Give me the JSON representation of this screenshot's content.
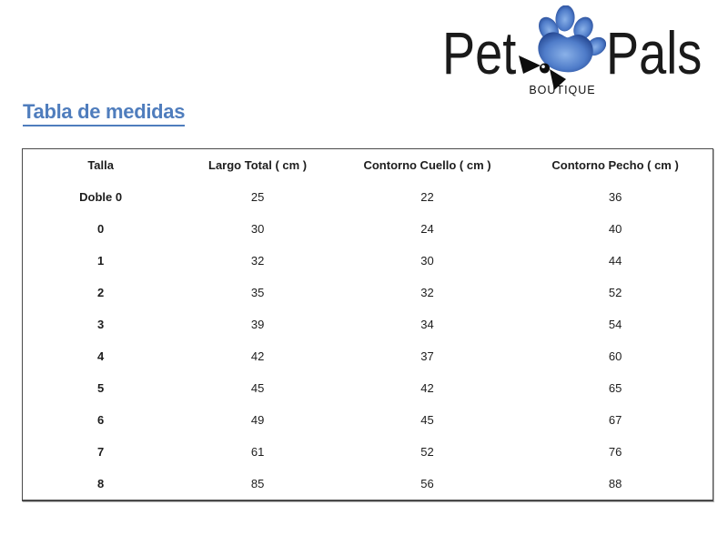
{
  "logo": {
    "word1": "Pet",
    "word2": "Pals",
    "subtitle": "BOUTIQUE",
    "paw_icon": "paw-with-bow-icon",
    "colors": {
      "paw_light": "#8ab1e8",
      "paw_mid": "#4f7cc9",
      "paw_dark": "#16357f",
      "bow": "#0d0d0d",
      "text": "#1a1a1a"
    }
  },
  "page": {
    "title": "Tabla de medidas",
    "title_color": "#4f7dbd",
    "background": "#ffffff"
  },
  "table": {
    "headers": [
      "Talla",
      "Largo Total ( cm )",
      "Contorno Cuello ( cm )",
      "Contorno Pecho ( cm )"
    ],
    "rows": [
      {
        "talla": "Doble 0",
        "largo_total_cm": 25,
        "contorno_cuello_cm": 22,
        "contorno_pecho_cm": 36
      },
      {
        "talla": "0",
        "largo_total_cm": 30,
        "contorno_cuello_cm": 24,
        "contorno_pecho_cm": 40
      },
      {
        "talla": "1",
        "largo_total_cm": 32,
        "contorno_cuello_cm": 30,
        "contorno_pecho_cm": 44
      },
      {
        "talla": "2",
        "largo_total_cm": 35,
        "contorno_cuello_cm": 32,
        "contorno_pecho_cm": 52
      },
      {
        "talla": "3",
        "largo_total_cm": 39,
        "contorno_cuello_cm": 34,
        "contorno_pecho_cm": 54
      },
      {
        "talla": "4",
        "largo_total_cm": 42,
        "contorno_cuello_cm": 37,
        "contorno_pecho_cm": 60
      },
      {
        "talla": "5",
        "largo_total_cm": 45,
        "contorno_cuello_cm": 42,
        "contorno_pecho_cm": 65
      },
      {
        "talla": "6",
        "largo_total_cm": 49,
        "contorno_cuello_cm": 45,
        "contorno_pecho_cm": 67
      },
      {
        "talla": "7",
        "largo_total_cm": 61,
        "contorno_cuello_cm": 52,
        "contorno_pecho_cm": 76
      },
      {
        "talla": "8",
        "largo_total_cm": 85,
        "contorno_cuello_cm": 56,
        "contorno_pecho_cm": 88
      }
    ]
  }
}
